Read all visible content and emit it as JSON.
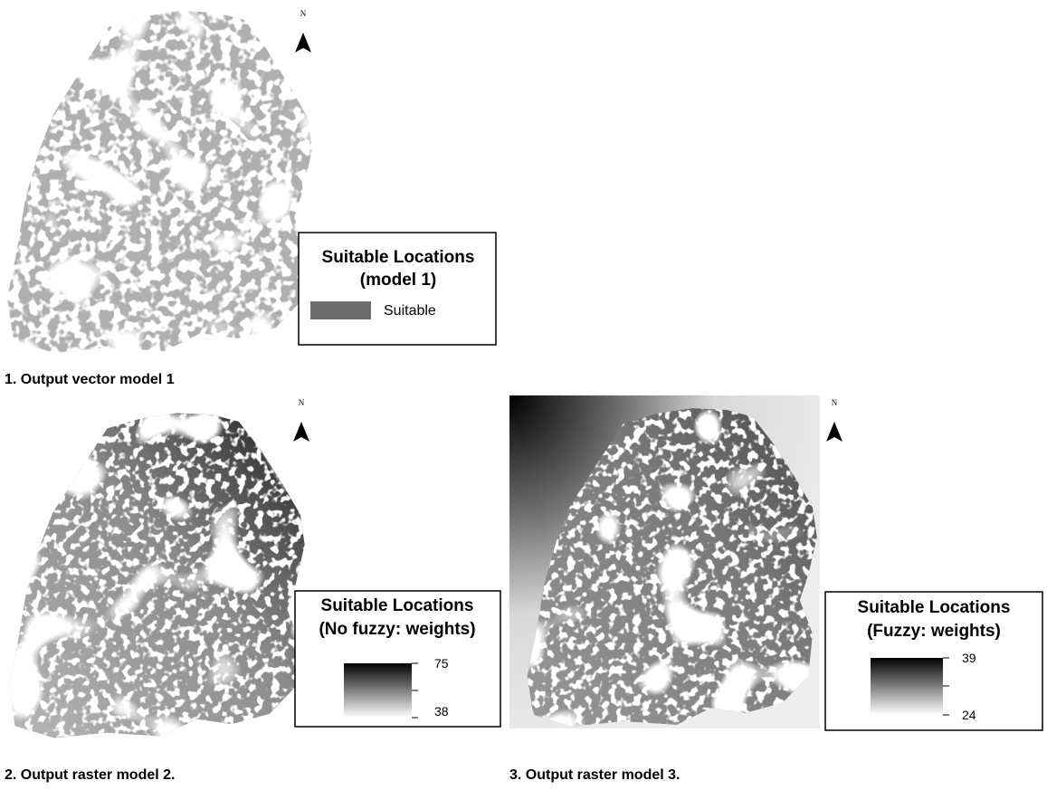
{
  "panels": [
    {
      "north": "N",
      "caption": "1. Output vector model 1",
      "legend": {
        "title_lines": [
          "Suitable Locations",
          "(model 1)"
        ],
        "item": "Suitable"
      }
    },
    {
      "north": "N",
      "caption": "2. Output raster model 2.",
      "legend": {
        "title_lines": [
          "Suitable Locations",
          "(No fuzzy: weights)"
        ],
        "high": 75,
        "low": 38
      }
    },
    {
      "north": "N",
      "caption": "3. Output raster model 3.",
      "legend": {
        "title_lines": [
          "Suitable Locations",
          "(Fuzzy: weights)"
        ],
        "high": 39,
        "low": 24
      }
    }
  ]
}
